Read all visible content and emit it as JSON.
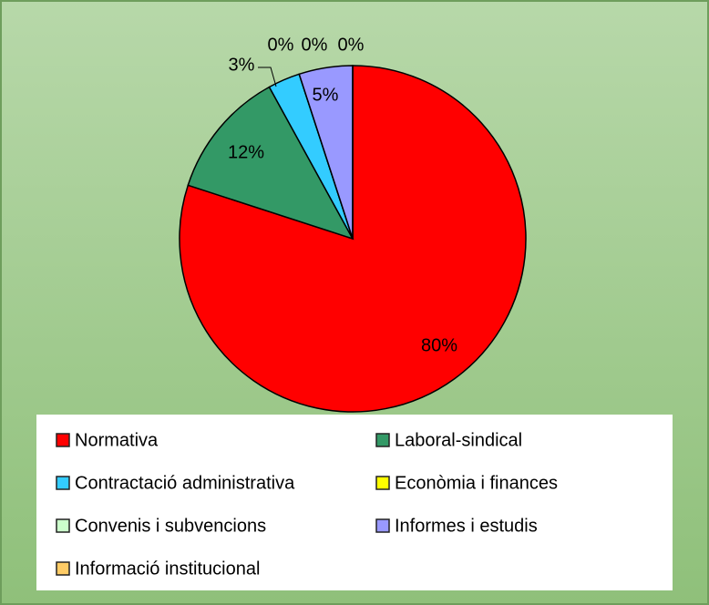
{
  "chart_data": {
    "type": "pie",
    "categories": [
      "Normativa",
      "Laboral-sindical",
      "Contractació administrativa",
      "Econòmia i finances",
      "Convenis i subvencions",
      "Informes i estudis",
      "Informació institucional"
    ],
    "values": [
      80,
      12,
      3,
      0,
      0,
      5,
      0
    ],
    "value_labels": [
      "80%",
      "12%",
      "3%",
      "0%",
      "0%",
      "5%",
      "0%"
    ],
    "colors": [
      "#ff0000",
      "#339966",
      "#33ccff",
      "#ffff00",
      "#ccffcc",
      "#9999ff",
      "#ffcc66"
    ],
    "legend": "bottom"
  }
}
